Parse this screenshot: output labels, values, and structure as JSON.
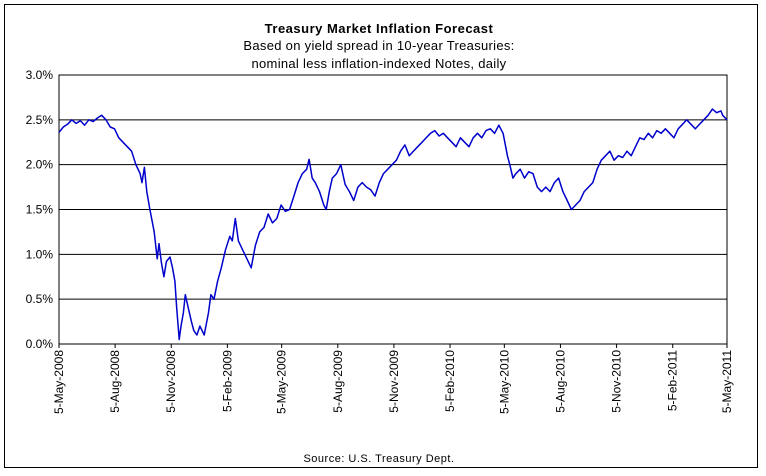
{
  "chart_data": {
    "type": "line",
    "title": "Treasury Market Inflation Forecast",
    "subtitle_lines": [
      "Based on yield spread in 10-year Treasuries:",
      "nominal less inflation-indexed Notes, daily"
    ],
    "source": "Source: U.S. Treasury Dept.",
    "xlabel": "",
    "ylabel": "",
    "x_start": "2008-05-05",
    "x_end": "2011-05-05",
    "ylim": [
      0,
      3.0
    ],
    "y_ticks": [
      {
        "value": 0.0,
        "label": "0.0%"
      },
      {
        "value": 0.5,
        "label": "0.5%"
      },
      {
        "value": 1.0,
        "label": "1.0%"
      },
      {
        "value": 1.5,
        "label": "1.5%"
      },
      {
        "value": 2.0,
        "label": "2.0%"
      },
      {
        "value": 2.5,
        "label": "2.5%"
      },
      {
        "value": 3.0,
        "label": "3.0%"
      }
    ],
    "x_ticks": [
      {
        "date": "2008-05-05",
        "label": "5-May-2008"
      },
      {
        "date": "2008-08-05",
        "label": "5-Aug-2008"
      },
      {
        "date": "2008-11-05",
        "label": "5-Nov-2008"
      },
      {
        "date": "2009-02-05",
        "label": "5-Feb-2009"
      },
      {
        "date": "2009-05-05",
        "label": "5-May-2009"
      },
      {
        "date": "2009-08-05",
        "label": "5-Aug-2009"
      },
      {
        "date": "2009-11-05",
        "label": "5-Nov-2009"
      },
      {
        "date": "2010-02-05",
        "label": "5-Feb-2010"
      },
      {
        "date": "2010-05-05",
        "label": "5-May-2010"
      },
      {
        "date": "2010-08-05",
        "label": "5-Aug-2010"
      },
      {
        "date": "2010-11-05",
        "label": "5-Nov-2010"
      },
      {
        "date": "2011-02-05",
        "label": "5-Feb-2011"
      },
      {
        "date": "2011-05-05",
        "label": "5-May-2011"
      }
    ],
    "grid": "horizontal",
    "line_color": "#0000cc",
    "series": [
      {
        "name": "",
        "points": [
          [
            "2008-05-05",
            2.36
          ],
          [
            "2008-05-12",
            2.42
          ],
          [
            "2008-05-19",
            2.45
          ],
          [
            "2008-05-26",
            2.5
          ],
          [
            "2008-06-02",
            2.46
          ],
          [
            "2008-06-09",
            2.49
          ],
          [
            "2008-06-16",
            2.44
          ],
          [
            "2008-06-23",
            2.5
          ],
          [
            "2008-06-30",
            2.48
          ],
          [
            "2008-07-07",
            2.52
          ],
          [
            "2008-07-14",
            2.55
          ],
          [
            "2008-07-21",
            2.5
          ],
          [
            "2008-07-28",
            2.42
          ],
          [
            "2008-08-04",
            2.4
          ],
          [
            "2008-08-11",
            2.3
          ],
          [
            "2008-08-18",
            2.25
          ],
          [
            "2008-08-25",
            2.2
          ],
          [
            "2008-09-01",
            2.15
          ],
          [
            "2008-09-08",
            2.0
          ],
          [
            "2008-09-15",
            1.9
          ],
          [
            "2008-09-18",
            1.8
          ],
          [
            "2008-09-22",
            1.97
          ],
          [
            "2008-09-26",
            1.7
          ],
          [
            "2008-10-01",
            1.5
          ],
          [
            "2008-10-08",
            1.25
          ],
          [
            "2008-10-13",
            0.95
          ],
          [
            "2008-10-16",
            1.12
          ],
          [
            "2008-10-20",
            0.9
          ],
          [
            "2008-10-24",
            0.75
          ],
          [
            "2008-10-28",
            0.92
          ],
          [
            "2008-11-03",
            0.97
          ],
          [
            "2008-11-07",
            0.85
          ],
          [
            "2008-11-11",
            0.7
          ],
          [
            "2008-11-14",
            0.4
          ],
          [
            "2008-11-18",
            0.05
          ],
          [
            "2008-11-21",
            0.2
          ],
          [
            "2008-11-25",
            0.35
          ],
          [
            "2008-11-28",
            0.55
          ],
          [
            "2008-12-03",
            0.4
          ],
          [
            "2008-12-08",
            0.25
          ],
          [
            "2008-12-12",
            0.15
          ],
          [
            "2008-12-17",
            0.1
          ],
          [
            "2008-12-22",
            0.2
          ],
          [
            "2008-12-29",
            0.1
          ],
          [
            "2009-01-05",
            0.35
          ],
          [
            "2009-01-09",
            0.55
          ],
          [
            "2009-01-14",
            0.5
          ],
          [
            "2009-01-20",
            0.7
          ],
          [
            "2009-01-26",
            0.85
          ],
          [
            "2009-02-02",
            1.05
          ],
          [
            "2009-02-09",
            1.2
          ],
          [
            "2009-02-13",
            1.15
          ],
          [
            "2009-02-18",
            1.4
          ],
          [
            "2009-02-23",
            1.15
          ],
          [
            "2009-03-02",
            1.05
          ],
          [
            "2009-03-09",
            0.95
          ],
          [
            "2009-03-16",
            0.85
          ],
          [
            "2009-03-23",
            1.1
          ],
          [
            "2009-03-30",
            1.25
          ],
          [
            "2009-04-06",
            1.3
          ],
          [
            "2009-04-13",
            1.45
          ],
          [
            "2009-04-20",
            1.35
          ],
          [
            "2009-04-27",
            1.4
          ],
          [
            "2009-05-04",
            1.55
          ],
          [
            "2009-05-11",
            1.48
          ],
          [
            "2009-05-18",
            1.5
          ],
          [
            "2009-05-25",
            1.65
          ],
          [
            "2009-06-01",
            1.8
          ],
          [
            "2009-06-08",
            1.9
          ],
          [
            "2009-06-15",
            1.95
          ],
          [
            "2009-06-19",
            2.06
          ],
          [
            "2009-06-24",
            1.85
          ],
          [
            "2009-06-29",
            1.8
          ],
          [
            "2009-07-06",
            1.7
          ],
          [
            "2009-07-13",
            1.55
          ],
          [
            "2009-07-17",
            1.5
          ],
          [
            "2009-07-22",
            1.7
          ],
          [
            "2009-07-27",
            1.85
          ],
          [
            "2009-08-03",
            1.9
          ],
          [
            "2009-08-10",
            2.0
          ],
          [
            "2009-08-17",
            1.78
          ],
          [
            "2009-08-24",
            1.7
          ],
          [
            "2009-08-31",
            1.6
          ],
          [
            "2009-09-07",
            1.75
          ],
          [
            "2009-09-14",
            1.8
          ],
          [
            "2009-09-21",
            1.75
          ],
          [
            "2009-09-28",
            1.72
          ],
          [
            "2009-10-05",
            1.65
          ],
          [
            "2009-10-12",
            1.8
          ],
          [
            "2009-10-19",
            1.9
          ],
          [
            "2009-10-26",
            1.95
          ],
          [
            "2009-11-02",
            2.0
          ],
          [
            "2009-11-09",
            2.05
          ],
          [
            "2009-11-16",
            2.15
          ],
          [
            "2009-11-23",
            2.22
          ],
          [
            "2009-11-30",
            2.1
          ],
          [
            "2009-12-07",
            2.15
          ],
          [
            "2009-12-14",
            2.2
          ],
          [
            "2009-12-21",
            2.25
          ],
          [
            "2009-12-28",
            2.3
          ],
          [
            "2010-01-04",
            2.35
          ],
          [
            "2010-01-11",
            2.38
          ],
          [
            "2010-01-18",
            2.32
          ],
          [
            "2010-01-25",
            2.35
          ],
          [
            "2010-02-01",
            2.3
          ],
          [
            "2010-02-08",
            2.25
          ],
          [
            "2010-02-15",
            2.2
          ],
          [
            "2010-02-22",
            2.3
          ],
          [
            "2010-03-01",
            2.25
          ],
          [
            "2010-03-08",
            2.2
          ],
          [
            "2010-03-15",
            2.3
          ],
          [
            "2010-03-22",
            2.35
          ],
          [
            "2010-03-29",
            2.3
          ],
          [
            "2010-04-05",
            2.38
          ],
          [
            "2010-04-12",
            2.4
          ],
          [
            "2010-04-19",
            2.35
          ],
          [
            "2010-04-26",
            2.44
          ],
          [
            "2010-05-03",
            2.35
          ],
          [
            "2010-05-10",
            2.1
          ],
          [
            "2010-05-14",
            2.0
          ],
          [
            "2010-05-19",
            1.85
          ],
          [
            "2010-05-24",
            1.9
          ],
          [
            "2010-05-31",
            1.95
          ],
          [
            "2010-06-07",
            1.85
          ],
          [
            "2010-06-14",
            1.92
          ],
          [
            "2010-06-21",
            1.9
          ],
          [
            "2010-06-28",
            1.75
          ],
          [
            "2010-07-05",
            1.7
          ],
          [
            "2010-07-12",
            1.75
          ],
          [
            "2010-07-19",
            1.7
          ],
          [
            "2010-07-26",
            1.8
          ],
          [
            "2010-08-02",
            1.85
          ],
          [
            "2010-08-09",
            1.7
          ],
          [
            "2010-08-16",
            1.6
          ],
          [
            "2010-08-23",
            1.5
          ],
          [
            "2010-08-30",
            1.55
          ],
          [
            "2010-09-06",
            1.6
          ],
          [
            "2010-09-13",
            1.7
          ],
          [
            "2010-09-20",
            1.75
          ],
          [
            "2010-09-27",
            1.8
          ],
          [
            "2010-10-04",
            1.95
          ],
          [
            "2010-10-11",
            2.05
          ],
          [
            "2010-10-18",
            2.1
          ],
          [
            "2010-10-25",
            2.15
          ],
          [
            "2010-11-01",
            2.05
          ],
          [
            "2010-11-08",
            2.1
          ],
          [
            "2010-11-15",
            2.08
          ],
          [
            "2010-11-22",
            2.15
          ],
          [
            "2010-11-29",
            2.1
          ],
          [
            "2010-12-06",
            2.2
          ],
          [
            "2010-12-13",
            2.3
          ],
          [
            "2010-12-20",
            2.28
          ],
          [
            "2010-12-27",
            2.35
          ],
          [
            "2011-01-03",
            2.3
          ],
          [
            "2011-01-10",
            2.38
          ],
          [
            "2011-01-17",
            2.35
          ],
          [
            "2011-01-24",
            2.4
          ],
          [
            "2011-01-31",
            2.35
          ],
          [
            "2011-02-07",
            2.3
          ],
          [
            "2011-02-14",
            2.4
          ],
          [
            "2011-02-21",
            2.45
          ],
          [
            "2011-02-28",
            2.5
          ],
          [
            "2011-03-07",
            2.45
          ],
          [
            "2011-03-14",
            2.4
          ],
          [
            "2011-03-21",
            2.45
          ],
          [
            "2011-03-28",
            2.5
          ],
          [
            "2011-04-04",
            2.55
          ],
          [
            "2011-04-11",
            2.62
          ],
          [
            "2011-04-18",
            2.58
          ],
          [
            "2011-04-25",
            2.6
          ],
          [
            "2011-04-28",
            2.55
          ],
          [
            "2011-05-05",
            2.5
          ]
        ]
      }
    ]
  }
}
